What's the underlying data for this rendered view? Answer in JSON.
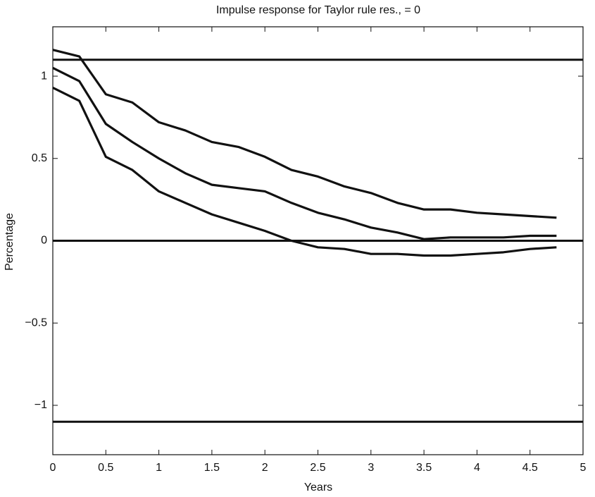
{
  "chart_data": {
    "type": "line",
    "title": "Impulse response for Taylor rule res.,  =  0",
    "xlabel": "Years",
    "ylabel": "Percentage",
    "x": [
      0,
      0.25,
      0.5,
      0.75,
      1,
      1.25,
      1.5,
      1.75,
      2,
      2.25,
      2.5,
      2.75,
      3,
      3.25,
      3.5,
      3.75,
      4,
      4.25,
      4.5,
      4.75
    ],
    "series": [
      {
        "color": "#111111",
        "values": [
          1.16,
          1.12,
          0.89,
          0.84,
          0.72,
          0.67,
          0.6,
          0.57,
          0.51,
          0.43,
          0.39,
          0.33,
          0.29,
          0.23,
          0.19,
          0.19,
          0.17,
          0.16,
          0.15,
          0.14
        ]
      },
      {
        "color": "#111111",
        "values": [
          1.05,
          0.97,
          0.71,
          0.6,
          0.5,
          0.41,
          0.34,
          0.32,
          0.3,
          0.23,
          0.17,
          0.13,
          0.08,
          0.05,
          0.01,
          0.02,
          0.02,
          0.02,
          0.03,
          0.03
        ]
      },
      {
        "color": "#111111",
        "values": [
          0.93,
          0.85,
          0.51,
          0.43,
          0.3,
          0.23,
          0.16,
          0.11,
          0.06,
          0.0,
          -0.04,
          -0.05,
          -0.08,
          -0.08,
          -0.09,
          -0.09,
          -0.08,
          -0.07,
          -0.05,
          -0.04
        ]
      }
    ],
    "hlines": [
      1.1,
      0,
      -1.1
    ],
    "xlim": [
      0,
      5
    ],
    "ylim": [
      -1.3,
      1.3
    ],
    "xticks": [
      0,
      0.5,
      1,
      1.5,
      2,
      2.5,
      3,
      3.5,
      4,
      4.5,
      5
    ],
    "yticks": [
      {
        "value": -1,
        "label": "−1"
      },
      {
        "value": -0.5,
        "label": "−0.5"
      },
      0,
      0.5,
      1
    ],
    "grid": false
  }
}
